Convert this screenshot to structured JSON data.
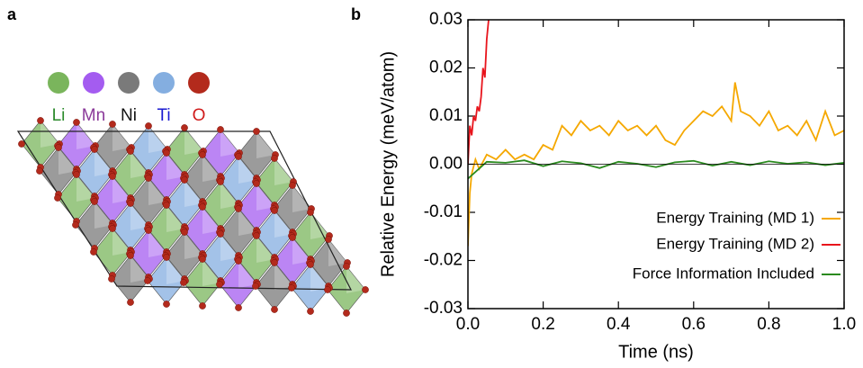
{
  "panel_labels": [
    "a",
    "b"
  ],
  "elements": [
    {
      "label": "Li",
      "color": "#7ab55c",
      "text_color": "#2a8a2a"
    },
    {
      "label": "Mn",
      "color": "#a45cf0",
      "text_color": "#8b3a9a"
    },
    {
      "label": "Ni",
      "color": "#7a7a7a",
      "text_color": "#111111"
    },
    {
      "label": "Ti",
      "color": "#84aee0",
      "text_color": "#1a1ad0"
    },
    {
      "label": "O",
      "color": "#b32a1c",
      "text_color": "#d01a1a"
    }
  ],
  "chart_data": {
    "type": "line",
    "xlabel": "Time (ns)",
    "ylabel": "Relative Energy (meV/atom)",
    "xlim": [
      0,
      1
    ],
    "ylim": [
      -0.03,
      0.03
    ],
    "xticks": [
      {
        "value": 0,
        "label": "0.0"
      },
      0.2,
      0.4,
      0.6,
      0.8,
      {
        "value": 1,
        "label": "1.0"
      }
    ],
    "yticks": [
      -0.03,
      -0.02,
      -0.01,
      {
        "value": 0,
        "label": "0.00"
      },
      0.01,
      0.02,
      0.03
    ],
    "legend": "lower right",
    "series": [
      {
        "name": "Energy Training (MD 1)",
        "color": "#f5a800",
        "x": [
          0,
          0.005,
          0.01,
          0.02,
          0.03,
          0.05,
          0.075,
          0.1,
          0.125,
          0.15,
          0.175,
          0.2,
          0.225,
          0.25,
          0.275,
          0.3,
          0.325,
          0.35,
          0.375,
          0.4,
          0.425,
          0.45,
          0.475,
          0.5,
          0.525,
          0.55,
          0.575,
          0.6,
          0.625,
          0.65,
          0.675,
          0.7,
          0.71,
          0.725,
          0.75,
          0.775,
          0.8,
          0.825,
          0.85,
          0.875,
          0.9,
          0.925,
          0.95,
          0.975,
          1.0
        ],
        "values": [
          -0.017,
          -0.006,
          -0.002,
          0.001,
          -0.001,
          0.002,
          0.001,
          0.003,
          0.001,
          0.002,
          0.001,
          0.004,
          0.003,
          0.008,
          0.006,
          0.009,
          0.007,
          0.008,
          0.006,
          0.009,
          0.007,
          0.008,
          0.006,
          0.008,
          0.005,
          0.004,
          0.007,
          0.009,
          0.011,
          0.01,
          0.012,
          0.009,
          0.017,
          0.011,
          0.01,
          0.008,
          0.011,
          0.007,
          0.008,
          0.006,
          0.009,
          0.005,
          0.011,
          0.006,
          0.007
        ]
      },
      {
        "name": "Energy Training (MD 2)",
        "color": "#e8141c",
        "x": [
          0,
          0.005,
          0.01,
          0.015,
          0.02,
          0.025,
          0.03,
          0.035,
          0.04,
          0.045,
          0.05,
          0.055
        ],
        "values": [
          0.0,
          0.008,
          0.006,
          0.01,
          0.009,
          0.012,
          0.011,
          0.014,
          0.02,
          0.018,
          0.026,
          0.03
        ]
      },
      {
        "name": "Force Information Included",
        "color": "#2a8a1e",
        "x": [
          0,
          0.05,
          0.1,
          0.15,
          0.2,
          0.25,
          0.3,
          0.35,
          0.4,
          0.45,
          0.5,
          0.55,
          0.6,
          0.65,
          0.7,
          0.75,
          0.8,
          0.85,
          0.9,
          0.95,
          1.0
        ],
        "values": [
          -0.003,
          0.0005,
          0.0003,
          0.0008,
          -0.0004,
          0.0006,
          0.0002,
          -0.0008,
          0.0005,
          0.0001,
          -0.0006,
          0.0004,
          0.0007,
          -0.0003,
          0.0005,
          -0.0002,
          0.0006,
          0.0001,
          0.0004,
          -0.0002,
          0.0003
        ]
      }
    ]
  }
}
